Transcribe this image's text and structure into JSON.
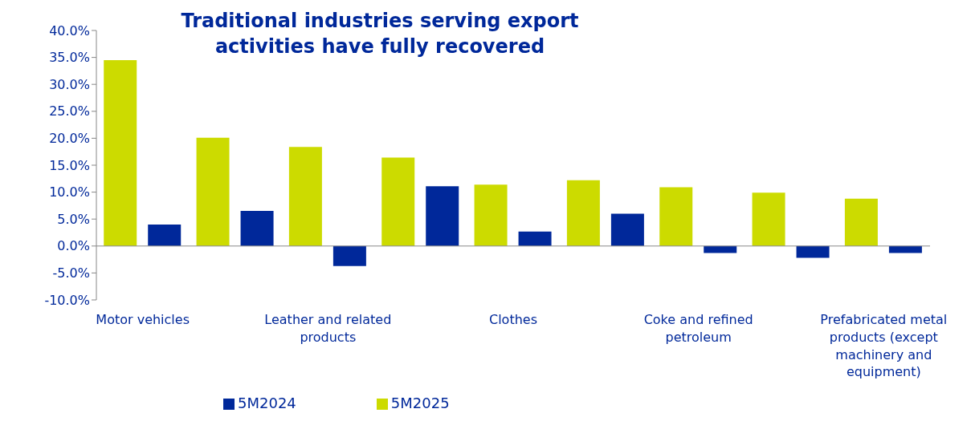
{
  "chart_data": {
    "type": "bar",
    "title": "Traditional industries serving export activities have fully recovered",
    "categories": [
      "Motor vehicles",
      null,
      "Leather and related products",
      null,
      "Clothes",
      null,
      "Coke and refined petroleum",
      null,
      "Prefabricated metal products (except machinery and equipment)"
    ],
    "series": [
      {
        "name": "5M2025",
        "color": "#ccdb00",
        "values": [
          34.5,
          20.1,
          18.4,
          16.4,
          11.4,
          12.2,
          10.9,
          9.9,
          8.8
        ]
      },
      {
        "name": "5M2024",
        "color": "#00289a",
        "values": [
          4.0,
          6.5,
          -3.7,
          11.1,
          2.7,
          6.0,
          -1.3,
          -2.2,
          -1.3
        ]
      }
    ],
    "ylim": [
      -10,
      40
    ],
    "yticks": [
      {
        "value": -10,
        "label": "-10.0%"
      },
      {
        "value": -5,
        "label": "-5.0%"
      },
      {
        "value": 0,
        "label": "0.0%"
      },
      {
        "value": 5,
        "label": "5.0%"
      },
      {
        "value": 10,
        "label": "10.0%"
      },
      {
        "value": 15,
        "label": "15.0%"
      },
      {
        "value": 20,
        "label": "20.0%"
      },
      {
        "value": 25,
        "label": "25.0%"
      },
      {
        "value": 30,
        "label": "30.0%"
      },
      {
        "value": 35,
        "label": "35.0%"
      },
      {
        "value": 40,
        "label": "40.0%"
      }
    ],
    "legend": "bottom"
  }
}
